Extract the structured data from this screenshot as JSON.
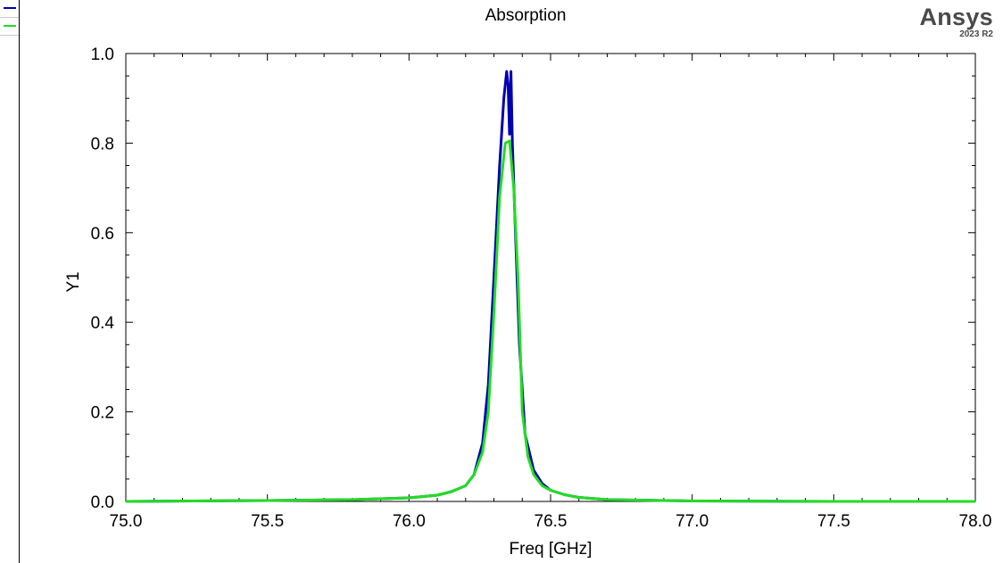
{
  "brand": {
    "name": "Ansys",
    "version": "2023 R2"
  },
  "legend": {
    "entries": [
      {
        "color": "#0000b0"
      },
      {
        "color": "#22dd22"
      }
    ]
  },
  "chart_data": {
    "type": "line",
    "title": "Absorption",
    "xlabel": "Freq [GHz]",
    "ylabel": "Y1",
    "xlim": [
      75.0,
      78.0
    ],
    "ylim": [
      0.0,
      1.0
    ],
    "xticks": [
      75.0,
      75.5,
      76.0,
      76.5,
      77.0,
      77.5,
      78.0
    ],
    "yticks": [
      0.0,
      0.2,
      0.4,
      0.6,
      0.8,
      1.0
    ],
    "xtick_labels": [
      "75.0",
      "75.5",
      "76.0",
      "76.5",
      "77.0",
      "77.5",
      "78.0"
    ],
    "ytick_labels": [
      "0.0",
      "0.2",
      "0.4",
      "0.6",
      "0.8",
      "1.0"
    ],
    "grid": false,
    "series": [
      {
        "color": "#0000b0",
        "x": [
          75.0,
          75.5,
          75.8,
          76.0,
          76.1,
          76.15,
          76.2,
          76.23,
          76.26,
          76.28,
          76.3,
          76.32,
          76.335,
          76.345,
          76.35,
          76.355,
          76.36,
          76.365,
          76.375,
          76.39,
          76.41,
          76.44,
          76.47,
          76.5,
          76.55,
          76.6,
          76.7,
          76.9,
          77.0,
          77.5,
          78.0
        ],
        "y": [
          0.0,
          0.002,
          0.004,
          0.008,
          0.014,
          0.022,
          0.035,
          0.06,
          0.13,
          0.26,
          0.5,
          0.75,
          0.9,
          0.96,
          0.93,
          0.82,
          0.96,
          0.8,
          0.62,
          0.35,
          0.15,
          0.07,
          0.04,
          0.025,
          0.015,
          0.009,
          0.004,
          0.002,
          0.001,
          0.0,
          0.0
        ]
      },
      {
        "color": "#22dd22",
        "x": [
          75.0,
          75.5,
          75.8,
          76.0,
          76.1,
          76.15,
          76.2,
          76.23,
          76.26,
          76.28,
          76.3,
          76.32,
          76.34,
          76.355,
          76.37,
          76.385,
          76.4,
          76.42,
          76.44,
          76.47,
          76.5,
          76.55,
          76.6,
          76.7,
          76.9,
          77.0,
          77.5,
          78.0
        ],
        "y": [
          0.0,
          0.002,
          0.004,
          0.008,
          0.014,
          0.022,
          0.035,
          0.06,
          0.11,
          0.2,
          0.42,
          0.68,
          0.8,
          0.805,
          0.7,
          0.5,
          0.2,
          0.1,
          0.06,
          0.035,
          0.025,
          0.015,
          0.009,
          0.004,
          0.002,
          0.001,
          0.0,
          0.0
        ]
      }
    ]
  }
}
